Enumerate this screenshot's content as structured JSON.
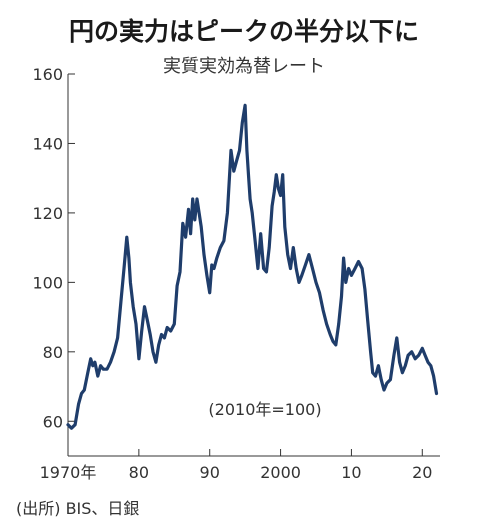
{
  "chart_data": {
    "type": "line",
    "title": "円の実力はピークの半分以下に",
    "subtitle": "実質実効為替レート",
    "annotation": "(2010年=100)",
    "source": "(出所) BIS、日銀",
    "x_tick_labels": [
      "1970年",
      "80",
      "90",
      "2000",
      "10",
      "20"
    ],
    "x_tick_values": [
      1970,
      1980,
      1990,
      2000,
      2010,
      2020
    ],
    "y_tick_labels": [
      "60",
      "80",
      "100",
      "120",
      "140",
      "160"
    ],
    "y_tick_values": [
      60,
      80,
      100,
      120,
      140,
      160
    ],
    "xlim": [
      1970,
      2022.5
    ],
    "ylim": [
      50,
      160
    ],
    "grid": false,
    "colors": {
      "line": "#1f3d6b",
      "axis": "#333333"
    },
    "series": [
      {
        "x": [
          1970.0,
          1970.5,
          1971.0,
          1971.5,
          1971.9,
          1972.3,
          1972.8,
          1973.2,
          1973.5,
          1973.8,
          1974.2,
          1974.6,
          1975.0,
          1975.5,
          1976.0,
          1976.5,
          1977.0,
          1977.5,
          1977.9,
          1978.3,
          1978.6,
          1978.8,
          1979.2,
          1979.6,
          1980.0,
          1980.4,
          1980.8,
          1981.2,
          1981.6,
          1982.0,
          1982.4,
          1982.8,
          1983.2,
          1983.6,
          1984.0,
          1984.5,
          1985.0,
          1985.4,
          1985.8,
          1986.2,
          1986.6,
          1987.0,
          1987.3,
          1987.6,
          1987.9,
          1988.2,
          1988.5,
          1988.8,
          1989.2,
          1989.6,
          1990.0,
          1990.3,
          1990.6,
          1991.0,
          1991.5,
          1992.0,
          1992.5,
          1993.0,
          1993.4,
          1993.8,
          1994.2,
          1994.6,
          1995.0,
          1995.25,
          1995.5,
          1995.7,
          1996.0,
          1996.4,
          1996.8,
          1997.2,
          1997.6,
          1998.0,
          1998.4,
          1998.8,
          1999.1,
          1999.4,
          1999.7,
          2000.0,
          2000.3,
          2000.6,
          2001.0,
          2001.4,
          2001.8,
          2002.2,
          2002.6,
          2003.0,
          2003.5,
          2004.0,
          2004.5,
          2005.0,
          2005.5,
          2006.0,
          2006.5,
          2007.0,
          2007.4,
          2007.8,
          2008.2,
          2008.6,
          2008.9,
          2009.2,
          2009.6,
          2010.0,
          2010.5,
          2011.0,
          2011.5,
          2011.9,
          2012.3,
          2012.7,
          2013.0,
          2013.4,
          2013.8,
          2014.2,
          2014.6,
          2015.0,
          2015.5,
          2016.0,
          2016.4,
          2016.8,
          2017.2,
          2017.6,
          2018.0,
          2018.5,
          2019.0,
          2019.5,
          2020.0,
          2020.4,
          2020.8,
          2021.2,
          2021.6,
          2022.0
        ],
        "y": [
          59,
          58,
          59,
          65,
          68,
          69,
          74,
          78,
          76,
          77,
          73,
          76,
          75,
          75,
          77,
          80,
          84,
          95,
          104,
          113,
          107,
          100,
          93,
          88,
          78,
          86,
          93,
          89,
          85,
          80,
          77,
          82,
          85,
          84,
          87,
          86,
          88,
          99,
          103,
          117,
          113,
          121,
          114,
          124,
          118,
          124,
          120,
          116,
          108,
          102,
          97,
          105,
          104,
          107,
          110,
          112,
          120,
          138,
          132,
          135,
          138,
          146,
          151,
          138,
          130,
          124,
          120,
          112,
          104,
          114,
          104,
          103,
          110,
          122,
          126,
          131,
          127,
          125,
          131,
          116,
          108,
          104,
          110,
          104,
          100,
          102,
          105,
          108,
          104,
          100,
          97,
          92,
          88,
          85,
          83,
          82,
          88,
          96,
          107,
          100,
          104,
          102,
          104,
          106,
          104,
          98,
          89,
          80,
          74,
          73,
          76,
          72,
          69,
          71,
          72,
          79,
          84,
          77,
          74,
          76,
          79,
          80,
          78,
          79,
          81,
          79,
          77,
          76,
          73,
          68
        ]
      }
    ]
  }
}
